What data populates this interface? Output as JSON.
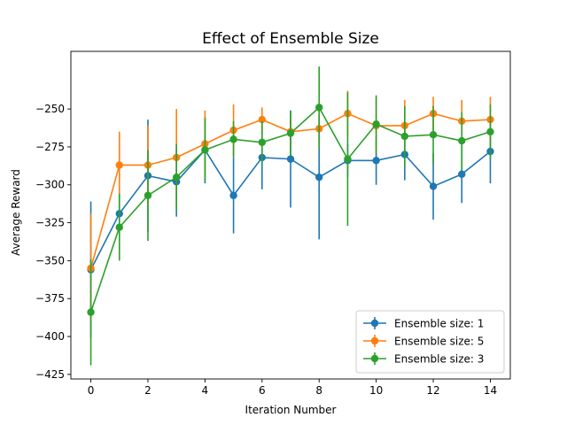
{
  "chart_data": {
    "type": "line",
    "title": "Effect of Ensemble Size",
    "xlabel": "Iteration Number",
    "ylabel": "Average Reward",
    "xlim": [
      -0.7,
      14.7
    ],
    "ylim": [
      -428,
      -212
    ],
    "xticks": [
      0,
      2,
      4,
      6,
      8,
      10,
      12,
      14
    ],
    "xtick_labels": [
      "0",
      "2",
      "4",
      "6",
      "8",
      "10",
      "12",
      "14"
    ],
    "yticks": [
      -425,
      -400,
      -375,
      -350,
      -325,
      -300,
      -275,
      -250
    ],
    "ytick_labels": [
      "−425",
      "−400",
      "−375",
      "−350",
      "−325",
      "−300",
      "−275",
      "−250"
    ],
    "grid": false,
    "legend_position": "bottom-right",
    "x": [
      0,
      1,
      2,
      3,
      4,
      5,
      6,
      7,
      8,
      9,
      10,
      11,
      12,
      13,
      14
    ],
    "series": [
      {
        "name": "Ensemble size: 1",
        "color": "#1f77b4",
        "values": [
          -356,
          -319,
          -294,
          -298,
          -277,
          -307,
          -282,
          -283,
          -295,
          -284,
          -284,
          -280,
          -301,
          -293,
          -278
        ],
        "errors": [
          45,
          14,
          37,
          23,
          22,
          25,
          21,
          32,
          41,
          11,
          16,
          17,
          22,
          19,
          21
        ]
      },
      {
        "name": "Ensemble size: 5",
        "color": "#ff7f0e",
        "values": [
          -355,
          -287,
          -287,
          -282,
          -273,
          -264,
          -257,
          -265,
          -263,
          -253,
          -261,
          -261,
          -253,
          -258,
          -257
        ],
        "errors": [
          36,
          22,
          26,
          32,
          22,
          17,
          8,
          9,
          12,
          15,
          18,
          17,
          11,
          14,
          15
        ]
      },
      {
        "name": "Ensemble size: 3",
        "color": "#2ca02c",
        "values": [
          -384,
          -328,
          -307,
          -295,
          -277,
          -270,
          -272,
          -266,
          -249,
          -283,
          -260,
          -268,
          -267,
          -271,
          -265
        ],
        "errors": [
          35,
          22,
          30,
          22,
          21,
          12,
          14,
          15,
          27,
          44,
          19,
          20,
          19,
          19,
          18
        ]
      }
    ]
  }
}
